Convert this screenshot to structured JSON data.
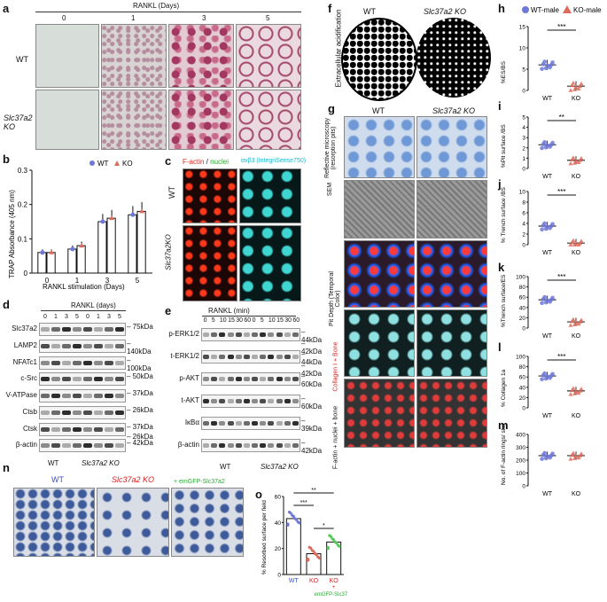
{
  "panels": {
    "a": {
      "label": "a",
      "title": "RANKL (Days)",
      "days": [
        "0",
        "1",
        "3",
        "5"
      ],
      "rows": [
        "WT",
        "Slc37a2 KO"
      ]
    },
    "b": {
      "label": "b",
      "ylabel": "TRAP Absorbance (405 nm)",
      "xlabel": "RANKL stimulation (Days)",
      "legend": [
        "WT",
        "KO"
      ]
    },
    "c": {
      "label": "c",
      "title_red": "F-actin",
      "title_sep": " / ",
      "title_green": "nuclei",
      "title_cyan": "αvβ3 (IntegriSense750)",
      "rows": [
        "WT",
        "Slc37a2KO"
      ]
    },
    "d": {
      "label": "d",
      "title": "RANKL (days)",
      "days": [
        "0",
        "1",
        "3",
        "5",
        "0",
        "1",
        "3",
        "5"
      ],
      "proteins": [
        "Slc37a2",
        "LAMP2",
        "NFATc1",
        "c-Src",
        "V-ATPase",
        "Ctsb",
        "Ctsk",
        "β-actin"
      ],
      "mw": [
        "75kDa",
        "140kDa",
        "100kDa",
        "50kDa",
        "37kDa",
        "26kDa",
        "37kDa",
        "26kDa",
        "42kDa"
      ],
      "groups": [
        "WT",
        "Slc37a2 KO"
      ]
    },
    "e": {
      "label": "e",
      "title": "RANKL (min)",
      "times": [
        "0",
        "5",
        "10",
        "15",
        "30",
        "60",
        "0",
        "5",
        "10",
        "15",
        "30",
        "60"
      ],
      "proteins": [
        "p-ERK1/2",
        "t-ERK1/2",
        "p-AKT",
        "t-AKT",
        "IκBα",
        "β-actin"
      ],
      "mw": [
        "44kDa",
        "42kDa",
        "44kDa",
        "42kDa",
        "60kDa",
        "60kDa",
        "39kDa",
        "42kDa"
      ],
      "groups": [
        "WT",
        "Slc37a2 KO"
      ]
    },
    "f": {
      "label": "f",
      "ylabel": "Extracellular acidification",
      "cols": [
        "WT",
        "Slc37a2 KO"
      ]
    },
    "g": {
      "label": "g",
      "cols": [
        "WT",
        "Slc37a2 KO"
      ],
      "rows": [
        "Reflective microscopy (resorption pits)",
        "SEM",
        "Pit Depth (Temporal Color)",
        "Collagen I + Bone",
        "F-actin + nuclei + bone"
      ]
    },
    "h": {
      "label": "h",
      "ylabel": "%ES/BS",
      "legend": [
        "WT-male",
        "KO-male"
      ],
      "sig": "***"
    },
    "i": {
      "label": "i",
      "ylabel": "%Pit surface /BS",
      "sig": "**"
    },
    "j": {
      "label": "j",
      "ylabel": "% Trench surface /BS",
      "sig": "***"
    },
    "k": {
      "label": "k",
      "ylabel": "%Trench surface/ES",
      "sig": "***"
    },
    "l": {
      "label": "l",
      "ylabel": "% Collagen 1a",
      "sig": "***"
    },
    "m": {
      "label": "m",
      "ylabel": "No. of F-actin rings/ slice"
    },
    "n": {
      "label": "n",
      "cols": [
        "WT",
        "Slc37a2 KO",
        "+ emGFP-Slc37a2"
      ]
    },
    "o": {
      "label": "o",
      "ylabel": "% Resorbed surface per field",
      "xcats": [
        "WT",
        "KO",
        "KO + emGFP-Slc37a2"
      ],
      "sigs": [
        "***",
        "**",
        "*"
      ]
    }
  },
  "chart_data": [
    {
      "panel": "b",
      "type": "bar",
      "title": "",
      "xlabel": "RANKL stimulation (Days)",
      "ylabel": "TRAP Absorbance (405 nm)",
      "categories": [
        "0",
        "1",
        "3",
        "5"
      ],
      "ylim": [
        0,
        0.3
      ],
      "yticks": [
        0,
        0.1,
        0.2,
        0.3
      ],
      "series": [
        {
          "name": "WT",
          "values": [
            0.06,
            0.07,
            0.15,
            0.17
          ]
        },
        {
          "name": "KO",
          "values": [
            0.06,
            0.08,
            0.16,
            0.18
          ]
        }
      ]
    },
    {
      "panel": "h",
      "type": "scatter",
      "ylabel": "%ES/BS",
      "categories": [
        "WT",
        "KO"
      ],
      "ylim": [
        0,
        15
      ],
      "yticks": [
        0,
        5,
        10,
        15
      ],
      "series": [
        {
          "name": "WT-male",
          "values": [
            6
          ]
        },
        {
          "name": "KO-male",
          "values": [
            1
          ]
        }
      ]
    },
    {
      "panel": "i",
      "type": "scatter",
      "ylabel": "%Pit surface /BS",
      "categories": [
        "WT",
        "KO"
      ],
      "ylim": [
        0,
        5
      ],
      "yticks": [
        0,
        1,
        2,
        3,
        4,
        5
      ],
      "series": [
        {
          "name": "WT-male",
          "values": [
            2.3
          ]
        },
        {
          "name": "KO-male",
          "values": [
            0.8
          ]
        }
      ]
    },
    {
      "panel": "j",
      "type": "scatter",
      "ylabel": "% Trench surface /BS",
      "categories": [
        "WT",
        "KO"
      ],
      "ylim": [
        0,
        10
      ],
      "yticks": [
        0,
        2,
        4,
        6,
        8,
        10
      ],
      "series": [
        {
          "name": "WT-male",
          "values": [
            3.5
          ]
        },
        {
          "name": "KO-male",
          "values": [
            0.3
          ]
        }
      ]
    },
    {
      "panel": "k",
      "type": "scatter",
      "ylabel": "%Trench surface/ES",
      "categories": [
        "WT",
        "KO"
      ],
      "ylim": [
        0,
        100
      ],
      "yticks": [
        0,
        20,
        40,
        60,
        80,
        100
      ],
      "series": [
        {
          "name": "WT-male",
          "values": [
            55
          ]
        },
        {
          "name": "KO-male",
          "values": [
            12
          ]
        }
      ]
    },
    {
      "panel": "l",
      "type": "scatter",
      "ylabel": "% Collagen 1a",
      "categories": [
        "WT",
        "KO"
      ],
      "ylim": [
        0,
        100
      ],
      "yticks": [
        0,
        20,
        40,
        60,
        80,
        100
      ],
      "series": [
        {
          "name": "WT-male",
          "values": [
            62
          ]
        },
        {
          "name": "KO-male",
          "values": [
            33
          ]
        }
      ]
    },
    {
      "panel": "m",
      "type": "scatter",
      "ylabel": "No. of F-actin rings/ slice",
      "categories": [
        "WT",
        "KO"
      ],
      "ylim": [
        0,
        400
      ],
      "yticks": [
        0,
        100,
        200,
        300,
        400
      ],
      "series": [
        {
          "name": "WT-male",
          "values": [
            235
          ]
        },
        {
          "name": "KO-male",
          "values": [
            235
          ]
        }
      ]
    },
    {
      "panel": "o",
      "type": "bar",
      "ylabel": "% Resorbed surface per field",
      "categories": [
        "WT",
        "KO",
        "KO + emGFP-Slc37a2"
      ],
      "ylim": [
        0,
        60
      ],
      "yticks": [
        0,
        20,
        40,
        60
      ],
      "values": [
        43,
        16,
        25
      ]
    }
  ]
}
